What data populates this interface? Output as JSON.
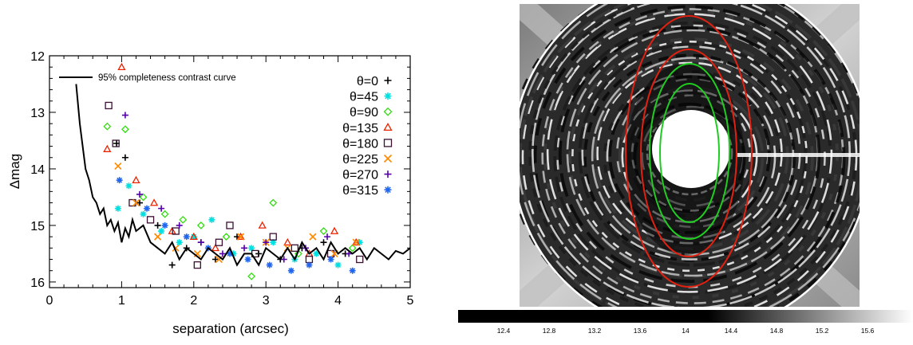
{
  "chart_data": [
    {
      "type": "scatter",
      "title": "",
      "xlabel": "separation (arcsec)",
      "ylabel": "Δmag",
      "xlim": [
        0,
        5
      ],
      "ylim": [
        16.1,
        12
      ],
      "y_inverted": true,
      "xticks": [
        "0",
        "1",
        "2",
        "3",
        "4",
        "5"
      ],
      "yticks": [
        "12",
        "13",
        "14",
        "15",
        "16"
      ],
      "legend_position": "top-right",
      "curve": {
        "name": "95% completeness contrast curve",
        "color": "#000000",
        "x": [
          0.37,
          0.42,
          0.47,
          0.5,
          0.55,
          0.6,
          0.65,
          0.7,
          0.75,
          0.8,
          0.85,
          0.9,
          0.95,
          1.0,
          1.05,
          1.1,
          1.15,
          1.2,
          1.3,
          1.4,
          1.5,
          1.6,
          1.7,
          1.8,
          1.9,
          2.0,
          2.1,
          2.2,
          2.3,
          2.4,
          2.5,
          2.6,
          2.7,
          2.8,
          2.9,
          3.0,
          3.1,
          3.2,
          3.3,
          3.4,
          3.5,
          3.6,
          3.7,
          3.8,
          3.9,
          4.0,
          4.1,
          4.2,
          4.3,
          4.4,
          4.5,
          4.6,
          4.7,
          4.8,
          4.9,
          5.0
        ],
        "y": [
          12.5,
          13.2,
          13.7,
          14.0,
          14.2,
          14.5,
          14.6,
          14.8,
          14.7,
          15.0,
          14.9,
          15.1,
          14.95,
          15.3,
          15.05,
          15.2,
          14.9,
          15.1,
          15.0,
          15.3,
          15.4,
          15.5,
          15.3,
          15.6,
          15.4,
          15.5,
          15.6,
          15.4,
          15.5,
          15.6,
          15.4,
          15.7,
          15.5,
          15.5,
          15.7,
          15.4,
          15.5,
          15.6,
          15.4,
          15.6,
          15.3,
          15.5,
          15.4,
          15.6,
          15.3,
          15.5,
          15.4,
          15.5,
          15.4,
          15.6,
          15.4,
          15.5,
          15.6,
          15.45,
          15.5,
          15.4
        ]
      },
      "series": [
        {
          "name": "θ=0",
          "marker": "plus",
          "color": "#000000",
          "x": [
            0.93,
            1.05,
            1.25,
            1.5,
            1.7,
            1.9,
            2.1,
            2.3,
            2.6,
            2.9,
            3.2,
            3.5,
            3.8,
            4.1
          ],
          "y": [
            13.55,
            13.8,
            14.6,
            15.0,
            15.7,
            15.4,
            15.3,
            15.6,
            15.2,
            15.5,
            15.6,
            15.4,
            15.3,
            15.5
          ]
        },
        {
          "name": "θ=45",
          "marker": "asterisk",
          "color": "#00e0e0",
          "x": [
            0.95,
            1.1,
            1.3,
            1.55,
            1.8,
            2.0,
            2.25,
            2.55,
            2.8,
            3.1,
            3.4,
            3.7,
            4.0,
            4.3
          ],
          "y": [
            14.7,
            14.3,
            14.8,
            15.1,
            15.3,
            15.2,
            14.9,
            15.5,
            15.4,
            15.3,
            15.6,
            15.5,
            15.7,
            15.3
          ]
        },
        {
          "name": "θ=90",
          "marker": "diamond",
          "color": "#33dd11",
          "x": [
            0.8,
            1.05,
            1.3,
            1.6,
            1.85,
            2.1,
            2.45,
            2.8,
            3.1,
            3.45,
            3.8,
            4.2
          ],
          "y": [
            13.25,
            13.3,
            14.5,
            14.8,
            14.9,
            15.0,
            15.2,
            15.9,
            14.6,
            15.5,
            15.1,
            15.4
          ]
        },
        {
          "name": "θ=135",
          "marker": "triangle",
          "color": "#ee2200",
          "x": [
            0.8,
            1.0,
            1.2,
            1.45,
            1.7,
            2.0,
            2.3,
            2.65,
            2.95,
            3.3,
            3.6,
            3.95,
            4.25
          ],
          "y": [
            13.65,
            12.2,
            14.2,
            14.6,
            15.1,
            15.2,
            15.4,
            15.2,
            15.0,
            15.3,
            15.5,
            15.1,
            15.3
          ]
        },
        {
          "name": "θ=180",
          "marker": "square",
          "color": "#3a1030",
          "x": [
            0.82,
            0.92,
            1.15,
            1.4,
            1.75,
            2.05,
            2.35,
            2.5,
            2.85,
            3.1,
            3.4,
            3.6,
            3.9,
            4.3
          ],
          "y": [
            12.88,
            13.55,
            14.6,
            14.9,
            15.1,
            15.7,
            15.3,
            15.0,
            15.5,
            15.2,
            15.4,
            15.6,
            15.5,
            15.6
          ]
        },
        {
          "name": "θ=225",
          "marker": "cross",
          "color": "#ff8800",
          "x": [
            0.95,
            1.2,
            1.5,
            1.75,
            2.05,
            2.35,
            2.65,
            3.0,
            3.3,
            3.65,
            3.95,
            4.25
          ],
          "y": [
            13.95,
            14.6,
            15.2,
            15.4,
            15.5,
            15.6,
            15.2,
            15.3,
            15.4,
            15.2,
            15.5,
            15.3
          ]
        },
        {
          "name": "θ=270",
          "marker": "plus",
          "color": "#5500aa",
          "x": [
            1.05,
            1.25,
            1.55,
            1.8,
            2.1,
            2.4,
            2.7,
            3.0,
            3.25,
            3.55,
            3.85,
            4.15
          ],
          "y": [
            13.05,
            14.45,
            14.7,
            15.0,
            15.3,
            15.5,
            15.4,
            15.3,
            15.6,
            15.4,
            15.2,
            15.5
          ]
        },
        {
          "name": "θ=315",
          "marker": "asterisk",
          "color": "#2266ee",
          "x": [
            0.97,
            1.35,
            1.6,
            1.9,
            2.2,
            2.5,
            2.75,
            3.05,
            3.35,
            3.6,
            3.9,
            4.2
          ],
          "y": [
            14.2,
            14.7,
            15.0,
            15.2,
            15.4,
            15.5,
            15.6,
            15.7,
            15.8,
            15.7,
            15.6,
            15.8
          ]
        }
      ]
    },
    {
      "type": "heatmap",
      "title": "",
      "colorbar": {
        "ticks": [
          "12.4",
          "12.8",
          "13.2",
          "13.6",
          "14",
          "14.4",
          "14.8",
          "15.2",
          "15.6"
        ],
        "range": [
          12.0,
          16.0
        ],
        "colors": [
          "#000000",
          "#ffffff"
        ]
      },
      "contour_colors": {
        "outer": "#e02010",
        "inner": "#20cc20"
      }
    }
  ]
}
